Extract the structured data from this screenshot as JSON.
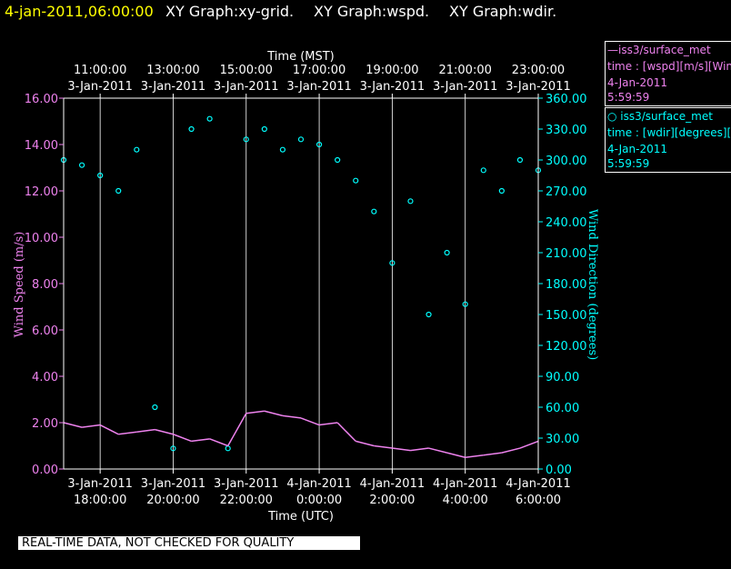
{
  "header": {
    "timestamp": "4-jan-2011,06:00:00",
    "graph_titles": [
      "XY Graph:xy-grid.",
      "XY Graph:wspd.",
      "XY Graph:wdir."
    ]
  },
  "colors": {
    "timestamp": "#ffff00",
    "wspd": "#ee82ee",
    "wdir": "#00ffff",
    "axes": "#ffffff",
    "grid": "#ffffff"
  },
  "legend": {
    "wspd": {
      "line1": "—iss3/surface_met",
      "line2": "time : [wspd][m/s][Wind",
      "line3": "4-Jan-2011",
      "line4": "5:59:59"
    },
    "wdir": {
      "line1": "○ iss3/surface_met",
      "line2": "time : [wdir][degrees][W",
      "line3": "4-Jan-2011",
      "line4": "5:59:59"
    }
  },
  "notice": "REAL-TIME DATA, NOT CHECKED FOR QUALITY",
  "chart_data": {
    "type": "line",
    "top_axis": {
      "label": "Time (MST)",
      "tick_times": [
        "11:00:00",
        "13:00:00",
        "15:00:00",
        "17:00:00",
        "19:00:00",
        "21:00:00",
        "23:00:00"
      ],
      "tick_dates": [
        "3-Jan-2011",
        "3-Jan-2011",
        "3-Jan-2011",
        "3-Jan-2011",
        "3-Jan-2011",
        "3-Jan-2011",
        "3-Jan-2011"
      ]
    },
    "bottom_axis": {
      "label": "Time (UTC)",
      "tick_dates": [
        "3-Jan-2011",
        "3-Jan-2011",
        "3-Jan-2011",
        "4-Jan-2011",
        "4-Jan-2011",
        "4-Jan-2011",
        "4-Jan-2011"
      ],
      "tick_times": [
        "18:00:00",
        "20:00:00",
        "22:00:00",
        "0:00:00",
        "2:00:00",
        "4:00:00",
        "6:00:00"
      ],
      "range_hours_utc": [
        17.0,
        30.0
      ]
    },
    "left_axis": {
      "label": "Wind Speed (m/s)",
      "ylim": [
        0,
        16
      ],
      "ticks": [
        "0.00",
        "2.00",
        "4.00",
        "6.00",
        "8.00",
        "10.00",
        "12.00",
        "14.00",
        "16.00"
      ]
    },
    "right_axis": {
      "label": "Wind Direction (degrees)",
      "ylim": [
        0,
        360
      ],
      "ticks": [
        "0.00",
        "30.00",
        "60.00",
        "90.00",
        "120.00",
        "150.00",
        "180.00",
        "210.00",
        "240.00",
        "270.00",
        "300.00",
        "330.00",
        "360.00"
      ]
    },
    "grid": true,
    "series": [
      {
        "name": "iss3/surface_met time : [wspd][m/s]",
        "axis": "left",
        "style": "line",
        "x_hours_utc": [
          17.0,
          17.5,
          18.0,
          18.5,
          19.0,
          19.5,
          20.0,
          20.5,
          21.0,
          21.5,
          22.0,
          22.5,
          23.0,
          23.5,
          24.0,
          24.5,
          25.0,
          25.5,
          26.0,
          26.5,
          27.0,
          27.5,
          28.0,
          28.5,
          29.0,
          29.5,
          30.0
        ],
        "values": [
          2.0,
          1.8,
          1.9,
          1.5,
          1.6,
          1.7,
          1.5,
          1.2,
          1.3,
          1.0,
          2.4,
          2.5,
          2.3,
          2.2,
          1.9,
          2.0,
          1.2,
          1.0,
          0.9,
          0.8,
          0.9,
          0.7,
          0.5,
          0.6,
          0.7,
          0.9,
          1.2
        ]
      },
      {
        "name": "iss3/surface_met time : [wdir][degrees]",
        "axis": "right",
        "style": "scatter",
        "x_hours_utc": [
          17.0,
          17.5,
          18.0,
          18.5,
          19.0,
          19.5,
          20.0,
          20.5,
          21.0,
          21.5,
          22.0,
          22.5,
          23.0,
          23.5,
          24.0,
          24.5,
          25.0,
          25.5,
          26.0,
          26.5,
          27.0,
          27.5,
          28.0,
          28.5,
          29.0,
          29.5,
          30.0
        ],
        "values": [
          300,
          295,
          285,
          270,
          310,
          60,
          20,
          330,
          340,
          20,
          320,
          330,
          310,
          320,
          315,
          300,
          280,
          250,
          200,
          260,
          150,
          210,
          160,
          290,
          270,
          300,
          290
        ]
      }
    ]
  }
}
